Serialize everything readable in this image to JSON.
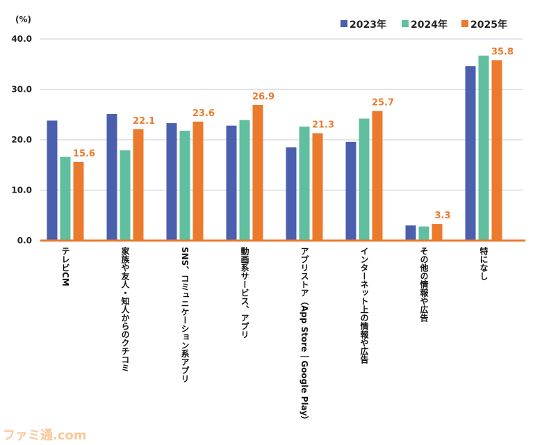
{
  "chart_data": {
    "type": "bar",
    "ylabel": "(%)",
    "ylim": [
      0,
      40
    ],
    "yticks": [
      "0.0",
      "10.0",
      "20.0",
      "30.0",
      "40.0"
    ],
    "grid": true,
    "legend_position": "top-right",
    "categories": [
      "テレビCM",
      "家族や友人・知人からのクチコミ",
      "SNS、コミュニケーション系アプリ",
      "動画系サービス、アプリ",
      "アプリストア（App Store｜Google Play）",
      "インターネット上の情報や広告",
      "その他の情報や広告",
      "特になし"
    ],
    "series": [
      {
        "name": "2023年",
        "color": "#4a5fad",
        "values": [
          23.8,
          25.1,
          23.3,
          22.8,
          18.5,
          19.6,
          3.0,
          34.6
        ]
      },
      {
        "name": "2024年",
        "color": "#5fbf9e",
        "values": [
          16.6,
          17.9,
          21.8,
          23.9,
          22.6,
          24.2,
          2.8,
          36.7
        ]
      },
      {
        "name": "2025年",
        "color": "#ec7a2c",
        "values": [
          15.6,
          22.1,
          23.6,
          26.9,
          21.3,
          25.7,
          3.3,
          35.8
        ],
        "labels": [
          "15.6",
          "22.1",
          "23.6",
          "26.9",
          "21.3",
          "25.7",
          "3.3",
          "35.8"
        ]
      }
    ]
  },
  "watermark": "ファミ通.com"
}
